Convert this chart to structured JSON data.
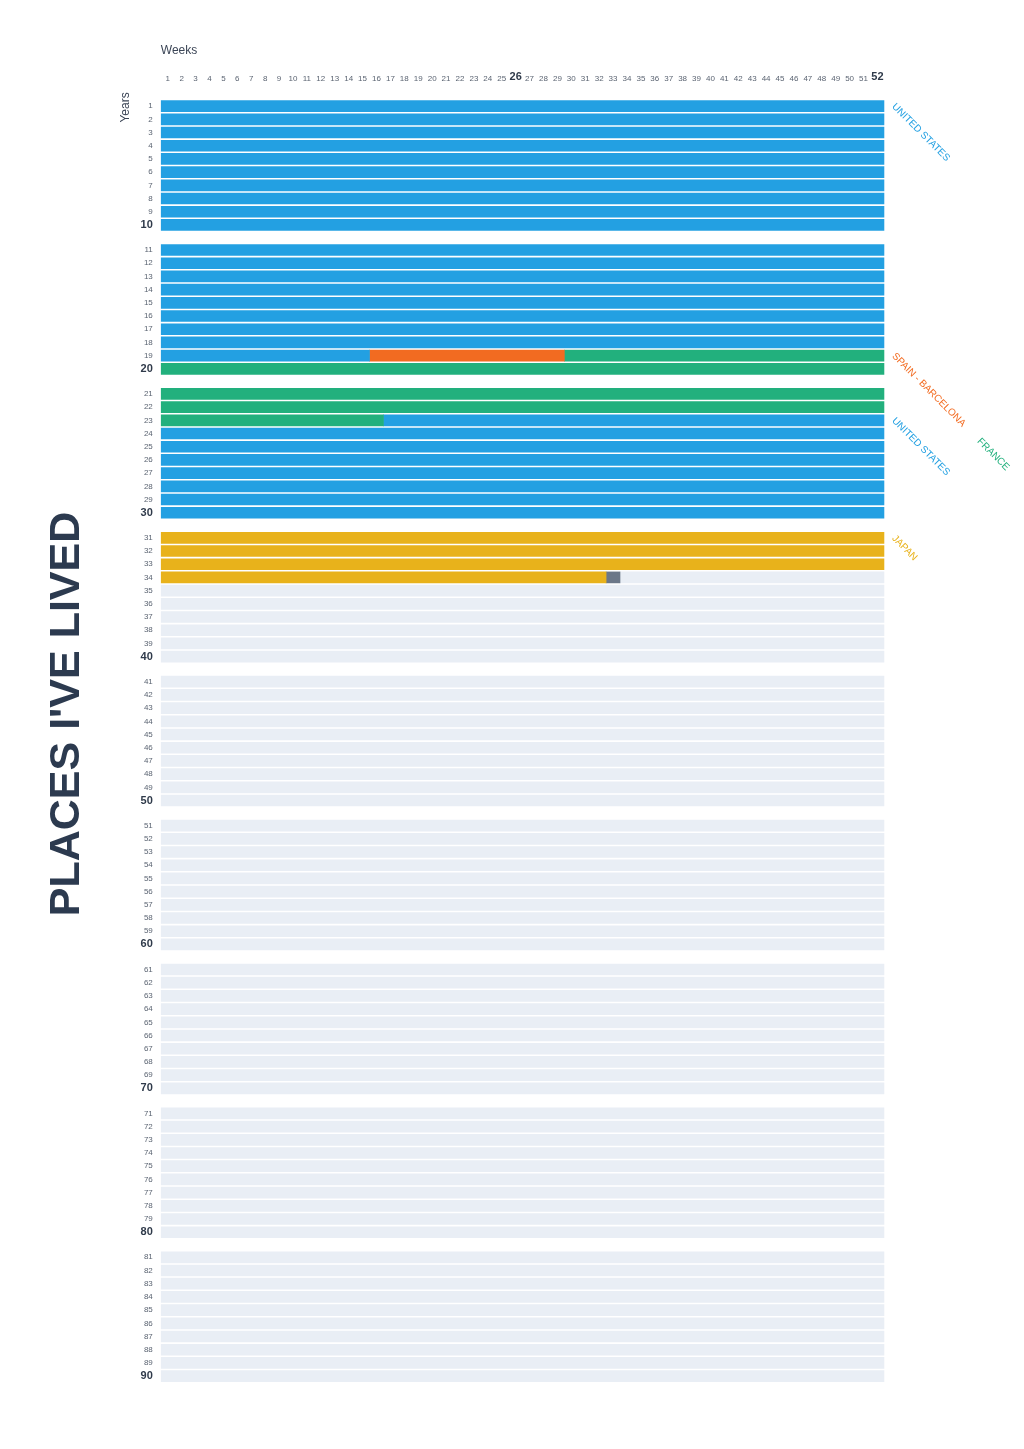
{
  "chart_data": {
    "type": "bar",
    "orientation": "horizontal",
    "stacked": true,
    "title": "PLACES I'VE LIVED",
    "xlabel": "Weeks",
    "ylabel": "Years",
    "categories": [
      "1",
      "2",
      "3",
      "4",
      "5",
      "6",
      "7",
      "8",
      "9",
      "10",
      "11",
      "12",
      "13",
      "14",
      "15",
      "16",
      "17",
      "18",
      "19",
      "20",
      "21",
      "22",
      "23",
      "24",
      "25",
      "26",
      "27",
      "28",
      "29",
      "30",
      "31",
      "32",
      "33",
      "34",
      "35",
      "36",
      "37",
      "38",
      "39",
      "40",
      "41",
      "42",
      "43",
      "44",
      "45",
      "46",
      "47",
      "48",
      "49",
      "50",
      "51",
      "52",
      "53",
      "54",
      "55",
      "56",
      "57",
      "58",
      "59",
      "60",
      "61",
      "62",
      "63",
      "64",
      "65",
      "66",
      "67",
      "68",
      "69",
      "70",
      "71",
      "72",
      "73",
      "74",
      "75",
      "76",
      "77",
      "78",
      "79",
      "80",
      "81",
      "82",
      "83",
      "84",
      "85",
      "86",
      "87",
      "88",
      "89",
      "90"
    ],
    "xlim": [
      0,
      52
    ],
    "xticks": [
      {
        "value": 0.5,
        "label": "1"
      },
      {
        "value": 1.5,
        "label": "2"
      },
      {
        "value": 2.5,
        "label": "3"
      },
      {
        "value": 3.5,
        "label": "4"
      },
      {
        "value": 4.5,
        "label": "5"
      },
      {
        "value": 5.5,
        "label": "6"
      },
      {
        "value": 6.5,
        "label": "7"
      },
      {
        "value": 7.5,
        "label": "8"
      },
      {
        "value": 8.5,
        "label": "9"
      },
      {
        "value": 9.5,
        "label": "10"
      },
      {
        "value": 10.5,
        "label": "11"
      },
      {
        "value": 11.5,
        "label": "12"
      },
      {
        "value": 12.5,
        "label": "13"
      },
      {
        "value": 13.5,
        "label": "14"
      },
      {
        "value": 14.5,
        "label": "15"
      },
      {
        "value": 15.5,
        "label": "16"
      },
      {
        "value": 16.5,
        "label": "17"
      },
      {
        "value": 17.5,
        "label": "18"
      },
      {
        "value": 18.5,
        "label": "19"
      },
      {
        "value": 19.5,
        "label": "20"
      },
      {
        "value": 20.5,
        "label": "21"
      },
      {
        "value": 21.5,
        "label": "22"
      },
      {
        "value": 22.5,
        "label": "23"
      },
      {
        "value": 23.5,
        "label": "24"
      },
      {
        "value": 24.5,
        "label": "25"
      },
      {
        "value": 25.5,
        "label": "26"
      },
      {
        "value": 26.5,
        "label": "27"
      },
      {
        "value": 27.5,
        "label": "28"
      },
      {
        "value": 28.5,
        "label": "29"
      },
      {
        "value": 29.5,
        "label": "30"
      },
      {
        "value": 30.5,
        "label": "31"
      },
      {
        "value": 31.5,
        "label": "32"
      },
      {
        "value": 32.5,
        "label": "33"
      },
      {
        "value": 33.5,
        "label": "34"
      },
      {
        "value": 34.5,
        "label": "35"
      },
      {
        "value": 35.5,
        "label": "36"
      },
      {
        "value": 36.5,
        "label": "37"
      },
      {
        "value": 37.5,
        "label": "38"
      },
      {
        "value": 38.5,
        "label": "39"
      },
      {
        "value": 39.5,
        "label": "40"
      },
      {
        "value": 40.5,
        "label": "41"
      },
      {
        "value": 41.5,
        "label": "42"
      },
      {
        "value": 42.5,
        "label": "43"
      },
      {
        "value": 43.5,
        "label": "44"
      },
      {
        "value": 44.5,
        "label": "45"
      },
      {
        "value": 45.5,
        "label": "46"
      },
      {
        "value": 46.5,
        "label": "47"
      },
      {
        "value": 47.5,
        "label": "48"
      },
      {
        "value": 48.5,
        "label": "49"
      },
      {
        "value": 49.5,
        "label": "50"
      },
      {
        "value": 50.5,
        "label": "51"
      },
      {
        "value": 51.5,
        "label": "52"
      }
    ],
    "series": [
      {
        "name": "UNITED STATES",
        "color": "#23a0e2",
        "values": [
          52,
          52,
          52,
          52,
          52,
          52,
          52,
          52,
          52,
          52,
          52,
          52,
          52,
          52,
          52,
          52,
          52,
          52,
          15,
          null,
          null,
          null,
          null,
          null,
          null,
          null,
          null,
          null,
          null,
          null,
          null,
          null,
          null,
          null,
          null,
          null,
          null,
          null,
          null,
          null,
          null,
          null,
          null,
          null,
          null,
          null,
          null,
          null,
          null,
          null,
          null,
          null,
          null,
          null,
          null,
          null,
          null,
          null,
          null,
          null,
          null,
          null,
          null,
          null,
          null,
          null,
          null,
          null,
          null,
          null,
          null,
          null,
          null,
          null,
          null,
          null,
          null,
          null,
          null,
          null,
          null,
          null,
          null,
          null,
          null,
          null,
          null,
          null,
          null,
          null
        ]
      },
      {
        "name": "SPAIN - BARCELONA",
        "color": "#f26b21",
        "values": [
          null,
          null,
          null,
          null,
          null,
          null,
          null,
          null,
          null,
          null,
          null,
          null,
          null,
          null,
          null,
          null,
          null,
          null,
          14,
          null,
          null,
          null,
          null,
          null,
          null,
          null,
          null,
          null,
          null,
          null,
          null,
          null,
          null,
          null,
          null,
          null,
          null,
          null,
          null,
          null,
          null,
          null,
          null,
          null,
          null,
          null,
          null,
          null,
          null,
          null,
          null,
          null,
          null,
          null,
          null,
          null,
          null,
          null,
          null,
          null,
          null,
          null,
          null,
          null,
          null,
          null,
          null,
          null,
          null,
          null,
          null,
          null,
          null,
          null,
          null,
          null,
          null,
          null,
          null,
          null,
          null,
          null,
          null,
          null,
          null,
          null,
          null,
          null,
          null,
          null
        ]
      },
      {
        "name": "FRANCE",
        "color": "#22b07d",
        "values": [
          null,
          null,
          null,
          null,
          null,
          null,
          null,
          null,
          null,
          null,
          null,
          null,
          null,
          null,
          null,
          null,
          null,
          null,
          23,
          52,
          52,
          52,
          16,
          null,
          null,
          null,
          null,
          null,
          null,
          null,
          null,
          null,
          null,
          null,
          null,
          null,
          null,
          null,
          null,
          null,
          null,
          null,
          null,
          null,
          null,
          null,
          null,
          null,
          null,
          null,
          null,
          null,
          null,
          null,
          null,
          null,
          null,
          null,
          null,
          null,
          null,
          null,
          null,
          null,
          null,
          null,
          null,
          null,
          null,
          null,
          null,
          null,
          null,
          null,
          null,
          null,
          null,
          null,
          null,
          null,
          null,
          null,
          null,
          null,
          null,
          null,
          null,
          null,
          null,
          null
        ]
      },
      {
        "name": "UNITED STATES",
        "color": "#23a0e2",
        "values": [
          null,
          null,
          null,
          null,
          null,
          null,
          null,
          null,
          null,
          null,
          null,
          null,
          null,
          null,
          null,
          null,
          null,
          null,
          null,
          null,
          null,
          null,
          36,
          52,
          52,
          52,
          52,
          52,
          52,
          52,
          null,
          null,
          null,
          null,
          null,
          null,
          null,
          null,
          null,
          null,
          null,
          null,
          null,
          null,
          null,
          null,
          null,
          null,
          null,
          null,
          null,
          null,
          null,
          null,
          null,
          null,
          null,
          null,
          null,
          null,
          null,
          null,
          null,
          null,
          null,
          null,
          null,
          null,
          null,
          null,
          null,
          null,
          null,
          null,
          null,
          null,
          null,
          null,
          null,
          null,
          null,
          null,
          null,
          null,
          null,
          null,
          null,
          null,
          null,
          null
        ]
      },
      {
        "name": "JAPAN",
        "color": "#e8b21b",
        "values": [
          null,
          null,
          null,
          null,
          null,
          null,
          null,
          null,
          null,
          null,
          null,
          null,
          null,
          null,
          null,
          null,
          null,
          null,
          null,
          null,
          null,
          null,
          null,
          null,
          null,
          null,
          null,
          null,
          null,
          null,
          52,
          52,
          52,
          32,
          null,
          null,
          null,
          null,
          null,
          null,
          null,
          null,
          null,
          null,
          null,
          null,
          null,
          null,
          null,
          null,
          null,
          null,
          null,
          null,
          null,
          null,
          null,
          null,
          null,
          null,
          null,
          null,
          null,
          null,
          null,
          null,
          null,
          null,
          null,
          null,
          null,
          null,
          null,
          null,
          null,
          null,
          null,
          null,
          null,
          null,
          null,
          null,
          null,
          null,
          null,
          null,
          null,
          null,
          null,
          null
        ]
      },
      {
        "color": "#6b7788",
        "values": [
          null,
          null,
          null,
          null,
          null,
          null,
          null,
          null,
          null,
          null,
          null,
          null,
          null,
          null,
          null,
          null,
          null,
          null,
          null,
          null,
          null,
          null,
          null,
          null,
          null,
          null,
          null,
          null,
          null,
          null,
          null,
          null,
          null,
          1,
          null,
          null,
          null,
          null,
          null,
          null,
          null,
          null,
          null,
          null,
          null,
          null,
          null,
          null,
          null,
          null,
          null,
          null,
          null,
          null,
          null,
          null,
          null,
          null,
          null,
          null,
          null,
          null,
          null,
          null,
          null,
          null,
          null,
          null,
          null,
          null,
          null,
          null,
          null,
          null,
          null,
          null,
          null,
          null,
          null,
          null,
          null,
          null,
          null,
          null,
          null,
          null,
          null,
          null,
          null,
          null
        ]
      },
      {
        "color": "#e9eef5",
        "values": [
          null,
          null,
          null,
          null,
          null,
          null,
          null,
          null,
          null,
          null,
          null,
          null,
          null,
          null,
          null,
          null,
          null,
          null,
          null,
          null,
          null,
          null,
          null,
          null,
          null,
          null,
          null,
          null,
          null,
          null,
          null,
          null,
          null,
          19,
          52,
          52,
          52,
          52,
          52,
          52,
          52,
          52,
          52,
          52,
          52,
          52,
          52,
          52,
          52,
          52,
          52,
          52,
          52,
          52,
          52,
          52,
          52,
          52,
          52,
          52,
          52,
          52,
          52,
          52,
          52,
          52,
          52,
          52,
          52,
          52,
          52,
          52,
          52,
          52,
          52,
          52,
          52,
          52,
          52,
          52,
          52,
          52,
          52,
          52,
          52,
          52,
          52,
          52,
          52,
          52
        ]
      }
    ]
  }
}
